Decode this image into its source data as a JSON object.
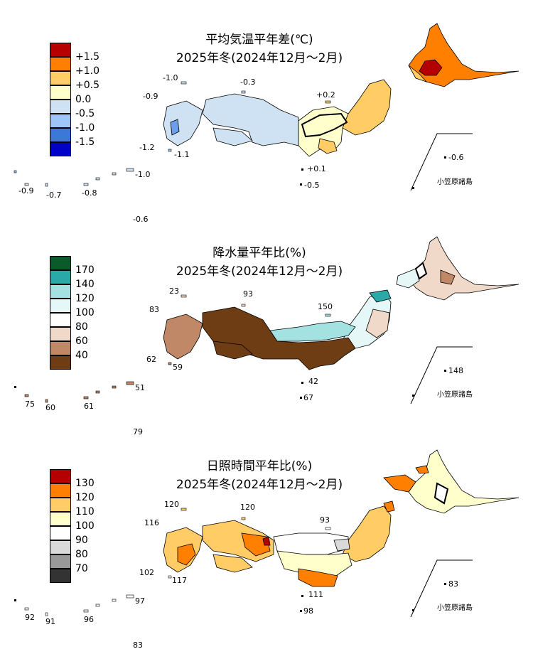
{
  "panels": [
    {
      "title": "平均気温平年差(℃)",
      "subtitle": "2025年冬(2024年12月～2月)",
      "legend": [
        {
          "label": "+1.5",
          "color": "#b50000"
        },
        {
          "label": "+1.0",
          "color": "#ff7f00"
        },
        {
          "label": "+0.5",
          "color": "#ffcc66"
        },
        {
          "label": "0.0",
          "color": "#ffffcc"
        },
        {
          "label": "-0.5",
          "color": "#cfe2f3"
        },
        {
          "label": "-1.0",
          "color": "#9fc5f8"
        },
        {
          "label": "-1.5",
          "color": "#3c78d8"
        },
        {
          "label": "",
          "color": "#0000c8"
        }
      ],
      "station_values": [
        "-1.0",
        "-0.3",
        "-0.9",
        "+0.2",
        "-1.2",
        "-1.1",
        "+0.1",
        "-0.5",
        "-0.6",
        "-0.9",
        "-0.7",
        "-0.8",
        "-1.0",
        "-0.6"
      ],
      "island_label": "小笠原諸島"
    },
    {
      "title": "降水量平年比(%)",
      "subtitle": "2025年冬(2024年12月～2月)",
      "legend": [
        {
          "label": "",
          "color": "#0b5a2a"
        },
        {
          "label": "170",
          "color": "#2aa9a9"
        },
        {
          "label": "140",
          "color": "#a4e1e1"
        },
        {
          "label": "120",
          "color": "#e6f7f7"
        },
        {
          "label": "100",
          "color": "#ffffff"
        },
        {
          "label": "80",
          "color": "#f0d9c8"
        },
        {
          "label": "60",
          "color": "#c08866"
        },
        {
          "label": "40",
          "color": "#6e3d14"
        }
      ],
      "station_values": [
        "23",
        "93",
        "83",
        "150",
        "62",
        "59",
        "42",
        "67",
        "148",
        "75",
        "60",
        "61",
        "51",
        "79"
      ],
      "island_label": "小笠原諸島"
    },
    {
      "title": "日照時間平年比(%)",
      "subtitle": "2025年冬(2024年12月～2月)",
      "legend": [
        {
          "label": "",
          "color": "#b50000"
        },
        {
          "label": "130",
          "color": "#ff7f00"
        },
        {
          "label": "120",
          "color": "#ffcc66"
        },
        {
          "label": "110",
          "color": "#ffffcc"
        },
        {
          "label": "100",
          "color": "#ffffff"
        },
        {
          "label": "90",
          "color": "#d9d9d9"
        },
        {
          "label": "80",
          "color": "#999999"
        },
        {
          "label": "70",
          "color": "#333333"
        }
      ],
      "station_values": [
        "120",
        "120",
        "116",
        "93",
        "102",
        "117",
        "111",
        "98",
        "83",
        "92",
        "91",
        "96",
        "97",
        "83"
      ],
      "island_label": "小笠原諸島"
    }
  ]
}
